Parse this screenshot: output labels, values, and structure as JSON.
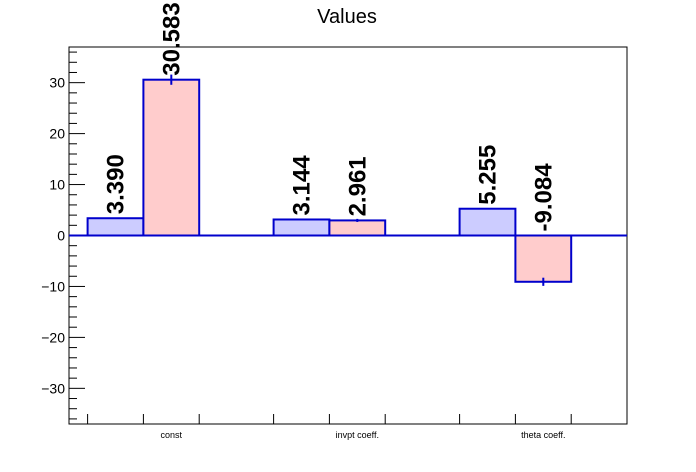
{
  "chart_data": {
    "type": "bar",
    "title": "Values",
    "xlabel": "",
    "ylabel": "",
    "categories": [
      "const",
      "invpt coeff.",
      "theta coeff."
    ],
    "ylim": [
      -37,
      37
    ],
    "yticks": [
      -30,
      -20,
      -10,
      0,
      10,
      20,
      30
    ],
    "ytick_labels": [
      "−30",
      "−20",
      "−10",
      "0",
      "10",
      "20",
      "30"
    ],
    "grid": false,
    "series": [
      {
        "values": [
          3.39,
          3.144,
          5.255
        ],
        "labels": [
          "3.390",
          "3.144",
          "5.255"
        ],
        "errors": [
          0,
          0,
          0
        ],
        "fill": "#ccccff",
        "edge": "#0000cc"
      },
      {
        "values": [
          30.583,
          2.961,
          -9.084
        ],
        "labels": [
          "30.583",
          "2.961",
          "-9.084"
        ],
        "errors": [
          1.0,
          0.3,
          0.8
        ],
        "fill": "#ffcccc",
        "edge": "#0000cc"
      }
    ]
  }
}
